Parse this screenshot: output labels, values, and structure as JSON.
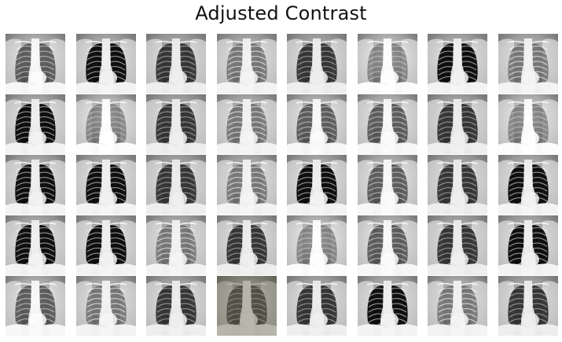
{
  "figure": {
    "title": "Adjusted Contrast"
  },
  "grid": {
    "rows": 5,
    "columns": 8,
    "tiles": [
      {
        "tone": "light",
        "tint": "#000000"
      },
      {
        "tone": "dark",
        "tint": "#000000"
      },
      {
        "tone": "mid",
        "tint": "#000000"
      },
      {
        "tone": "hazy",
        "tint": "#000000"
      },
      {
        "tone": "mid",
        "tint": "#000000"
      },
      {
        "tone": "bright",
        "tint": "#000000"
      },
      {
        "tone": "dark",
        "tint": "#000000"
      },
      {
        "tone": "hazy",
        "tint": "#000000"
      },
      {
        "tone": "dark",
        "tint": "#000000"
      },
      {
        "tone": "bright",
        "tint": "#000000"
      },
      {
        "tone": "mid",
        "tint": "#000000"
      },
      {
        "tone": "hazy",
        "tint": "#000000"
      },
      {
        "tone": "light",
        "tint": "#000000"
      },
      {
        "tone": "light",
        "tint": "#000000"
      },
      {
        "tone": "mid",
        "tint": "#000000"
      },
      {
        "tone": "bright",
        "tint": "#000000"
      },
      {
        "tone": "dark",
        "tint": "#000000"
      },
      {
        "tone": "dark",
        "tint": "#000000"
      },
      {
        "tone": "mid",
        "tint": "#000000"
      },
      {
        "tone": "hazy",
        "tint": "#000000"
      },
      {
        "tone": "dark",
        "tint": "#000000"
      },
      {
        "tone": "light",
        "tint": "#000000"
      },
      {
        "tone": "mid",
        "tint": "#000000"
      },
      {
        "tone": "dark",
        "tint": "#000000"
      },
      {
        "tone": "dark",
        "tint": "#000000"
      },
      {
        "tone": "dark",
        "tint": "#000000"
      },
      {
        "tone": "hazy",
        "tint": "#000000"
      },
      {
        "tone": "mid",
        "tint": "#000000"
      },
      {
        "tone": "bright",
        "tint": "#000000"
      },
      {
        "tone": "light",
        "tint": "#000000"
      },
      {
        "tone": "mid",
        "tint": "#000000"
      },
      {
        "tone": "dark",
        "tint": "#000000"
      },
      {
        "tone": "light",
        "tint": "#000000"
      },
      {
        "tone": "hazy",
        "tint": "#000000"
      },
      {
        "tone": "mid",
        "tint": "#000000"
      },
      {
        "tone": "light",
        "tint": "#3a3a1a"
      },
      {
        "tone": "mid",
        "tint": "#000000"
      },
      {
        "tone": "dark",
        "tint": "#000000"
      },
      {
        "tone": "hazy",
        "tint": "#000000"
      },
      {
        "tone": "mid",
        "tint": "#000000"
      }
    ]
  }
}
